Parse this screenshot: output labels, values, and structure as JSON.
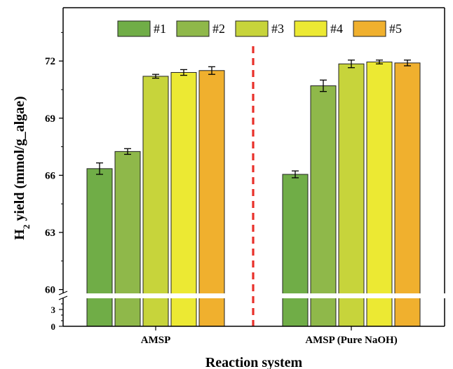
{
  "chart_data": {
    "type": "bar",
    "categories": [
      "AMSP",
      "AMSP (Pure NaOH)"
    ],
    "series": [
      {
        "name": "#1",
        "color": "#70ad47",
        "values": [
          66.35,
          66.05
        ],
        "errors": [
          0.3,
          0.18
        ]
      },
      {
        "name": "#2",
        "color": "#8fb84a",
        "values": [
          67.25,
          70.7
        ],
        "errors": [
          0.15,
          0.3
        ]
      },
      {
        "name": "#3",
        "color": "#c7d43b",
        "values": [
          71.2,
          71.85
        ],
        "errors": [
          0.1,
          0.2
        ]
      },
      {
        "name": "#4",
        "color": "#ece933",
        "values": [
          71.4,
          71.95
        ],
        "errors": [
          0.15,
          0.1
        ]
      },
      {
        "name": "#5",
        "color": "#f0b02e",
        "values": [
          71.5,
          71.9
        ],
        "errors": [
          0.2,
          0.15
        ]
      }
    ],
    "xlabel": "Reaction system",
    "ylabel_main": "H",
    "ylabel_sub": "2",
    "ylabel_rest": " yield (mmol/g_algae)",
    "upper_axis": {
      "ylim": [
        59.8,
        74.8
      ],
      "ticks": [
        "60",
        "63",
        "66",
        "69",
        "72"
      ]
    },
    "lower_axis": {
      "ylim": [
        0,
        5
      ],
      "ticks": [
        "0",
        "3"
      ]
    },
    "axis_break": true,
    "divider_color": "#e8302a",
    "legend_position": "top-center",
    "grid": false
  }
}
